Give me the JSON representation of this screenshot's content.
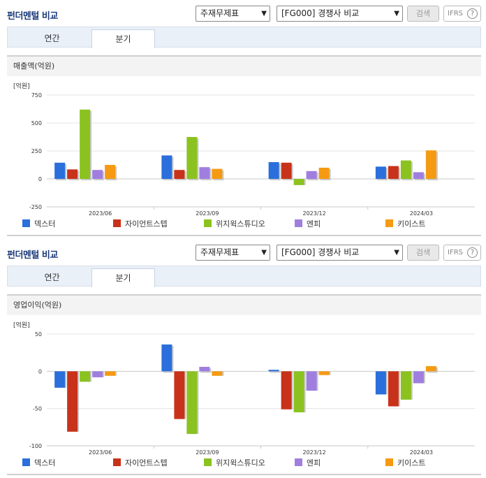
{
  "panels": [
    {
      "title": "펀더멘털 비교",
      "select1": "주재무제표",
      "select2": "[FG000] 경쟁사 비교",
      "search_label": "검색",
      "ifrs_label": "IFRS",
      "ifrs_help": "?",
      "tabs": [
        {
          "label": "연간"
        },
        {
          "label": "분기"
        }
      ],
      "active_tab": "분기",
      "section_title": "매출액(억원)",
      "unit": "[억원]"
    },
    {
      "title": "펀더멘털 비교",
      "select1": "주재무제표",
      "select2": "[FG000] 경쟁사 비교",
      "search_label": "검색",
      "ifrs_label": "IFRS",
      "ifrs_help": "?",
      "tabs": [
        {
          "label": "연간"
        },
        {
          "label": "분기"
        }
      ],
      "active_tab": "분기",
      "section_title": "영업이익(억원)",
      "unit": "[억원]"
    }
  ],
  "colors": {
    "덱스터": "#2a6fdb",
    "자이언트스텝": "#c8321a",
    "위지윅스튜디오": "#8bc220",
    "엔피": "#a07ee0",
    "키이스트": "#f59a12"
  },
  "chart_data": [
    {
      "type": "bar",
      "title": "매출액(억원)",
      "ylabel": "[억원]",
      "categories": [
        "2023/06",
        "2023/09",
        "2023/12",
        "2024/03"
      ],
      "ylim": [
        -250,
        750
      ],
      "yticks": [
        750,
        500,
        250,
        0,
        -250
      ],
      "legend_position": "bottom",
      "series": [
        {
          "name": "덱스터",
          "values": [
            145,
            210,
            150,
            110
          ]
        },
        {
          "name": "자이언트스텝",
          "values": [
            85,
            80,
            145,
            115
          ]
        },
        {
          "name": "위지윅스튜디오",
          "values": [
            620,
            375,
            -55,
            165
          ]
        },
        {
          "name": "엔피",
          "values": [
            80,
            105,
            70,
            60
          ]
        },
        {
          "name": "키이스트",
          "values": [
            125,
            90,
            100,
            255
          ]
        }
      ]
    },
    {
      "type": "bar",
      "title": "영업이익(억원)",
      "ylabel": "[억원]",
      "categories": [
        "2023/06",
        "2023/09",
        "2023/12",
        "2024/03"
      ],
      "ylim": [
        -100,
        50
      ],
      "yticks": [
        50,
        0,
        -50,
        -100
      ],
      "legend_position": "bottom",
      "series": [
        {
          "name": "덱스터",
          "values": [
            -22,
            36,
            2,
            -31
          ]
        },
        {
          "name": "자이언트스텝",
          "values": [
            -81,
            -64,
            -51,
            -47
          ]
        },
        {
          "name": "위지윅스튜디오",
          "values": [
            -14,
            -84,
            -55,
            -38
          ]
        },
        {
          "name": "엔피",
          "values": [
            -8,
            6,
            -26,
            -16
          ]
        },
        {
          "name": "키이스트",
          "values": [
            -6,
            -6,
            -5,
            7
          ]
        }
      ]
    }
  ]
}
